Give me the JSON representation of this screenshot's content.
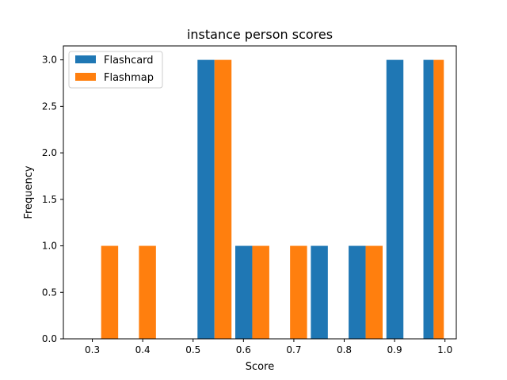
{
  "chart_data": {
    "type": "bar",
    "title": "instance person scores",
    "xlabel": "Score",
    "ylabel": "Frequency",
    "xlim": [
      0.2425,
      1.0225
    ],
    "ylim": [
      0,
      3.15
    ],
    "xticks": [
      0.3,
      0.4,
      0.5,
      0.6,
      0.7,
      0.8,
      0.9,
      1.0
    ],
    "xtick_labels": [
      "0.3",
      "0.4",
      "0.5",
      "0.6",
      "0.7",
      "0.8",
      "0.9",
      "1.0"
    ],
    "yticks": [
      0.0,
      0.5,
      1.0,
      1.5,
      2.0,
      2.5,
      3.0
    ],
    "ytick_labels": [
      "0.0",
      "0.5",
      "1.0",
      "1.5",
      "2.0",
      "2.5",
      "3.0"
    ],
    "grid": false,
    "legend_position": "upper-left",
    "bin_edges": [
      0.28,
      0.355,
      0.43,
      0.505,
      0.58,
      0.655,
      0.73,
      0.805,
      0.88,
      0.955,
      1.0
    ],
    "bin_centers": [
      0.3175,
      0.3925,
      0.4675,
      0.5425,
      0.6175,
      0.6925,
      0.7675,
      0.8425,
      0.9175,
      0.9775
    ],
    "series": [
      {
        "name": "Flashcard",
        "color": "#1f77b4",
        "values": [
          0,
          0,
          0,
          3,
          1,
          0,
          1,
          1,
          3,
          3
        ]
      },
      {
        "name": "Flashmap",
        "color": "#ff7f0e",
        "values": [
          1,
          1,
          0,
          3,
          1,
          1,
          0,
          1,
          0,
          3
        ]
      }
    ]
  }
}
